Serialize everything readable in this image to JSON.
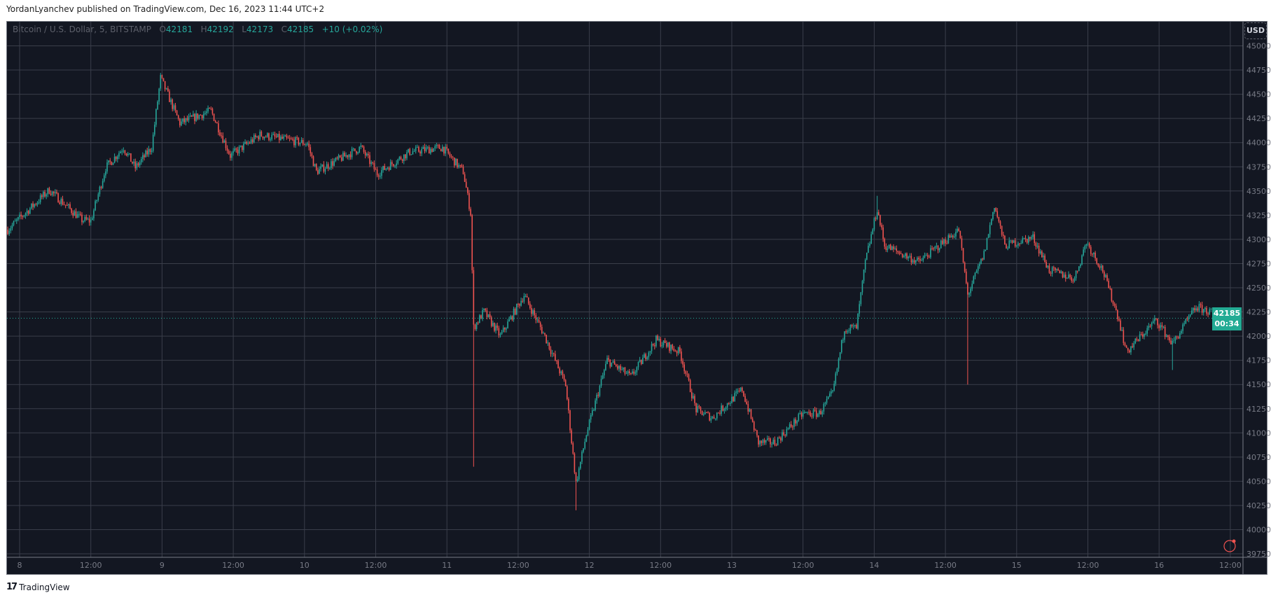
{
  "header": {
    "published": "YordanLyanchev published on TradingView.com, Dec 16, 2023 11:44 UTC+2"
  },
  "legend": {
    "symbol": "Bitcoin / U.S. Dollar, 5, BITSTAMP",
    "o_label": "O",
    "o": "42181",
    "h_label": "H",
    "h": "42192",
    "l_label": "L",
    "l": "42173",
    "c_label": "C",
    "c": "42185",
    "change": "+10 (+0.02%)"
  },
  "currency_button": "USD",
  "last_price": {
    "price": "42185",
    "countdown": "00:34"
  },
  "footer": {
    "brand": "TradingView"
  },
  "colors": {
    "background": "#131722",
    "up": "#26a69a",
    "down": "#ef5350",
    "grid": "#3a3e4a",
    "last_price": "#22ab94"
  },
  "chart_data": {
    "type": "candlestick",
    "title": "Bitcoin / U.S. Dollar, 5, BITSTAMP",
    "interval": "5 minutes",
    "ylim": [
      39750,
      45000
    ],
    "grid": true,
    "y_ticks": [
      "45000",
      "44750",
      "44500",
      "44250",
      "44000",
      "43750",
      "43500",
      "43250",
      "43000",
      "42750",
      "42500",
      "42250",
      "42000",
      "41750",
      "41500",
      "41250",
      "41000",
      "40750",
      "40500",
      "40250",
      "40000",
      "39750"
    ],
    "x_ticks": [
      {
        "label": "8",
        "t": "12-08 00:00"
      },
      {
        "label": "12:00",
        "t": "12-08 12:00"
      },
      {
        "label": "9",
        "t": "12-09 00:00"
      },
      {
        "label": "12:00",
        "t": "12-09 12:00"
      },
      {
        "label": "10",
        "t": "12-10 00:00"
      },
      {
        "label": "12:00",
        "t": "12-10 12:00"
      },
      {
        "label": "11",
        "t": "12-11 00:00"
      },
      {
        "label": "12:00",
        "t": "12-11 12:00"
      },
      {
        "label": "12",
        "t": "12-12 00:00"
      },
      {
        "label": "12:00",
        "t": "12-12 12:00"
      },
      {
        "label": "13",
        "t": "12-13 00:00"
      },
      {
        "label": "12:00",
        "t": "12-13 12:00"
      },
      {
        "label": "14",
        "t": "12-14 00:00"
      },
      {
        "label": "12:00",
        "t": "12-14 12:00"
      },
      {
        "label": "15",
        "t": "12-15 00:00"
      },
      {
        "label": "12:00",
        "t": "12-15 12:00"
      },
      {
        "label": "16",
        "t": "12-16 00:00"
      },
      {
        "label": "12:00",
        "t": "12-16 12:00"
      }
    ],
    "price_path": [
      [
        "12-07 22:00",
        43100
      ],
      [
        "12-08 05:00",
        43510
      ],
      [
        "12-08 10:30",
        43200
      ],
      [
        "12-08 12:00",
        43190
      ],
      [
        "12-08 14:30",
        43740
      ],
      [
        "12-08 17:30",
        43950
      ],
      [
        "12-08 19:30",
        43740
      ],
      [
        "12-08 22:15",
        43950
      ],
      [
        "12-08 23:45",
        44670
      ],
      [
        "12-09 03:00",
        44200
      ],
      [
        "12-09 08:15",
        44330
      ],
      [
        "12-09 11:30",
        43865
      ],
      [
        "12-09 16:30",
        44080
      ],
      [
        "12-10 00:30",
        43990
      ],
      [
        "12-10 02:00",
        43700
      ],
      [
        "12-10 09:30",
        43950
      ],
      [
        "12-10 12:15",
        43680
      ],
      [
        "12-10 17:45",
        43905
      ],
      [
        "12-10 23:15",
        43950
      ],
      [
        "12-11 02:45",
        43700
      ],
      [
        "12-11 04:00",
        43270
      ],
      [
        "12-11 04:30",
        42090
      ],
      [
        "12-11 06:15",
        42255
      ],
      [
        "12-11 09:00",
        42000
      ],
      [
        "12-11 13:00",
        42425
      ],
      [
        "12-11 16:30",
        42000
      ],
      [
        "12-11 20:00",
        41495
      ],
      [
        "12-11 21:45",
        40480
      ],
      [
        "12-11 23:30",
        40985
      ],
      [
        "12-12 03:00",
        41750
      ],
      [
        "12-12 07:00",
        41580
      ],
      [
        "12-12 11:15",
        41960
      ],
      [
        "12-12 15:15",
        41835
      ],
      [
        "12-12 18:00",
        41240
      ],
      [
        "12-12 20:45",
        41155
      ],
      [
        "12-13 01:45",
        41450
      ],
      [
        "12-13 04:30",
        40900
      ],
      [
        "12-13 07:15",
        40900
      ],
      [
        "12-13 12:00",
        41200
      ],
      [
        "12-13 14:45",
        41200
      ],
      [
        "12-13 17:00",
        41410
      ],
      [
        "12-13 19:00",
        42085
      ],
      [
        "12-13 21:00",
        42085
      ],
      [
        "12-13 22:30",
        42765
      ],
      [
        "12-14 00:30",
        43315
      ],
      [
        "12-14 01:45",
        42935
      ],
      [
        "12-14 07:30",
        42765
      ],
      [
        "12-14 14:15",
        43100
      ],
      [
        "12-14 15:45",
        42425
      ],
      [
        "12-14 18:30",
        42850
      ],
      [
        "12-14 20:15",
        43355
      ],
      [
        "12-14 22:00",
        42935
      ],
      [
        "12-15 02:45",
        43020
      ],
      [
        "12-15 05:30",
        42680
      ],
      [
        "12-15 09:45",
        42595
      ],
      [
        "12-15 11:45",
        42975
      ],
      [
        "12-15 14:30",
        42680
      ],
      [
        "12-15 17:15",
        42170
      ],
      [
        "12-15 18:30",
        41835
      ],
      [
        "12-15 23:30",
        42170
      ],
      [
        "12-16 02:15",
        41920
      ],
      [
        "12-16 06:15",
        42300
      ],
      [
        "12-16 11:45",
        42185
      ]
    ],
    "wick_extremes": [
      [
        "12-11 04:30",
        40650
      ],
      [
        "12-11 21:45",
        40200
      ],
      [
        "12-14 15:45",
        41500
      ],
      [
        "12-14 00:30",
        43450
      ],
      [
        "12-08 23:45",
        44720
      ],
      [
        "12-16 02:15",
        41650
      ]
    ]
  }
}
